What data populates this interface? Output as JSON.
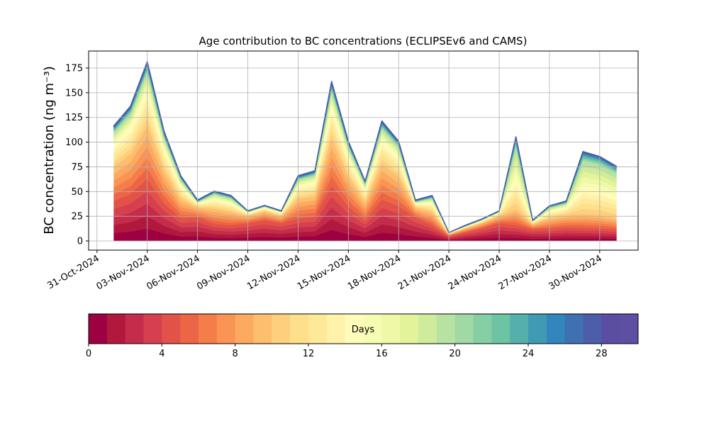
{
  "chart_data": {
    "type": "area",
    "title": "Age contribution to BC concentrations (ECLIPSEv6 and CAMS)",
    "ylabel": "BC concentration (ng m⁻³)",
    "x": [
      "2024-11-01",
      "2024-11-02",
      "2024-11-03",
      "2024-11-04",
      "2024-11-05",
      "2024-11-06",
      "2024-11-07",
      "2024-11-08",
      "2024-11-09",
      "2024-11-10",
      "2024-11-11",
      "2024-11-12",
      "2024-11-13",
      "2024-11-14",
      "2024-11-15",
      "2024-11-16",
      "2024-11-17",
      "2024-11-18",
      "2024-11-19",
      "2024-11-20",
      "2024-11-21",
      "2024-11-22",
      "2024-11-23",
      "2024-11-24",
      "2024-11-25",
      "2024-11-26",
      "2024-11-27",
      "2024-11-28",
      "2024-11-29",
      "2024-11-30",
      "2024-12-01"
    ],
    "series": [
      {
        "color": "#9e0142",
        "values": [
          8.1,
          9.5,
          12.6,
          7.7,
          4.6,
          4.8,
          3.5,
          3.2,
          3.6,
          4.2,
          3.6,
          4.6,
          4.9,
          11.2,
          7,
          4.2,
          8.4,
          7,
          4.8,
          3.2,
          1,
          1.8,
          2.6,
          3.6,
          3.2,
          2.4,
          2.5,
          2.8,
          2.7,
          2.6,
          2.3
        ]
      },
      {
        "color": "#b2183e",
        "values": [
          8.1,
          9.5,
          12.6,
          7.7,
          4.6,
          4.8,
          3.5,
          3.2,
          3.6,
          4.2,
          3.6,
          4.6,
          4.9,
          11.2,
          7,
          4.2,
          8.4,
          7,
          4.8,
          3.2,
          1,
          1.8,
          2.6,
          3.6,
          3.2,
          2.4,
          2.5,
          2.8,
          2.7,
          2.6,
          2.3
        ]
      },
      {
        "color": "#c52b4a",
        "values": [
          8.1,
          9.5,
          12.6,
          7.7,
          4.6,
          4.8,
          3.5,
          3.2,
          3.6,
          4.2,
          3.6,
          4.6,
          4.9,
          11.2,
          7,
          4.2,
          8.4,
          7,
          4.8,
          3.2,
          1,
          1.8,
          2.6,
          3.6,
          3.2,
          2.4,
          2.5,
          2.8,
          2.7,
          2.6,
          2.3
        ]
      },
      {
        "color": "#d6404e",
        "values": [
          8.1,
          9.5,
          12.6,
          7.7,
          4.6,
          4.8,
          3.5,
          3.2,
          3.6,
          4.2,
          3.6,
          4.6,
          4.9,
          11.2,
          7,
          4.2,
          8.4,
          7,
          4.8,
          3.2,
          1,
          1.8,
          2.6,
          3.6,
          3.2,
          2.4,
          2.5,
          2.8,
          2.7,
          2.6,
          2.3
        ]
      },
      {
        "color": "#e25249",
        "values": [
          8.1,
          9.5,
          12.6,
          7.7,
          4.6,
          4.8,
          3.5,
          3.2,
          3.6,
          4.2,
          3.6,
          4.6,
          4.9,
          11.2,
          7,
          4.2,
          8.4,
          7,
          4.8,
          3.2,
          1,
          1.8,
          2.6,
          3.6,
          3.2,
          2.4,
          2.5,
          2.8,
          2.7,
          2.6,
          2.3
        ]
      },
      {
        "color": "#ec6645",
        "values": [
          6.9,
          8.1,
          10.8,
          6.6,
          3.9,
          2,
          3,
          2.7,
          1.5,
          1.8,
          1.5,
          3.9,
          4.2,
          9.6,
          6,
          3.6,
          7.2,
          6,
          2,
          2.7,
          0.4,
          0.8,
          1.1,
          1.5,
          3.2,
          1,
          2.1,
          2.4,
          2.7,
          2.6,
          2.3
        ]
      },
      {
        "color": "#f57d4a",
        "values": [
          6.9,
          8.1,
          10.8,
          6.6,
          3.9,
          2,
          3,
          2.7,
          1.5,
          1.8,
          1.5,
          3.9,
          4.2,
          9.6,
          6,
          3.6,
          7.2,
          6,
          2,
          2.7,
          0.4,
          0.8,
          1.1,
          1.5,
          3.2,
          1,
          2.1,
          2.4,
          2.7,
          2.6,
          2.3
        ]
      },
      {
        "color": "#f99455",
        "values": [
          6.9,
          8.1,
          10.8,
          6.6,
          3.9,
          2,
          3,
          2.7,
          1.5,
          1.8,
          1.5,
          3.9,
          4.2,
          9.6,
          6,
          3.6,
          7.2,
          6,
          2,
          2.7,
          0.4,
          0.8,
          1.1,
          1.5,
          3.2,
          1,
          2.1,
          2.4,
          2.7,
          2.6,
          2.3
        ]
      },
      {
        "color": "#fcaa60",
        "values": [
          6.9,
          8.1,
          10.8,
          6.6,
          3.9,
          2,
          3,
          2.7,
          1.5,
          1.8,
          1.5,
          3.9,
          4.2,
          9.6,
          6,
          3.6,
          7.2,
          6,
          2,
          2.7,
          0.4,
          0.8,
          1.1,
          1.5,
          3.2,
          1,
          2.1,
          2.4,
          2.7,
          2.6,
          2.3
        ]
      },
      {
        "color": "#fdbe6e",
        "values": [
          6.9,
          8.1,
          10.8,
          6.6,
          3.9,
          2,
          3,
          2.7,
          1.5,
          1.8,
          1.5,
          3.9,
          4.2,
          9.6,
          6,
          3.6,
          7.2,
          6,
          2,
          2.7,
          0.4,
          0.8,
          1.1,
          1.5,
          3.2,
          1,
          2.1,
          2.4,
          2.7,
          2.6,
          2.3
        ]
      },
      {
        "color": "#fed07e",
        "values": [
          4.6,
          5.4,
          7.2,
          4.4,
          2.6,
          0.8,
          2,
          1.8,
          0.6,
          0.7,
          0.6,
          2.6,
          2.8,
          6.4,
          4,
          2.4,
          4.8,
          4,
          0.8,
          1.8,
          0.2,
          0.3,
          0.4,
          0.6,
          6.3,
          0.4,
          1.4,
          1.6,
          5.4,
          5.1,
          4.5
        ]
      },
      {
        "color": "#fee08b",
        "values": [
          4.6,
          5.4,
          7.2,
          4.4,
          2.6,
          0.8,
          2,
          1.8,
          0.6,
          0.7,
          0.6,
          2.6,
          2.8,
          6.4,
          4,
          2.4,
          4.8,
          4,
          0.8,
          1.8,
          0.2,
          0.3,
          0.4,
          0.6,
          6.3,
          0.4,
          1.4,
          1.6,
          5.4,
          5.1,
          4.5
        ]
      },
      {
        "color": "#fee999",
        "values": [
          4.6,
          5.4,
          7.2,
          4.4,
          2.6,
          0.8,
          2,
          1.8,
          0.6,
          0.7,
          0.6,
          2.6,
          2.8,
          6.4,
          4,
          2.4,
          4.8,
          4,
          0.8,
          1.8,
          0.2,
          0.3,
          0.4,
          0.6,
          6.3,
          0.4,
          1.4,
          1.6,
          5.4,
          5.1,
          4.5
        ]
      },
      {
        "color": "#fff3ac",
        "values": [
          4.6,
          5.4,
          7.2,
          4.4,
          2.6,
          0.8,
          2,
          1.8,
          0.6,
          0.7,
          0.6,
          2.6,
          2.8,
          6.4,
          4,
          2.4,
          4.8,
          4,
          0.8,
          1.8,
          0.2,
          0.3,
          0.4,
          0.6,
          6.3,
          0.4,
          1.4,
          1.6,
          5.4,
          5.1,
          4.5
        ]
      },
      {
        "color": "#fffcba",
        "values": [
          4.6,
          5.4,
          7.2,
          4.4,
          2.6,
          0.8,
          2,
          1.8,
          0.6,
          0.7,
          0.6,
          2.6,
          2.8,
          6.4,
          4,
          2.4,
          4.8,
          4,
          0.8,
          1.8,
          0.2,
          0.3,
          0.4,
          0.6,
          6.3,
          0.4,
          1.4,
          1.6,
          5.4,
          5.1,
          4.5
        ]
      },
      {
        "color": "#f7fcb3",
        "values": [
          2.3,
          2.7,
          3.6,
          2.2,
          1.3,
          0.3,
          1,
          0.9,
          0.2,
          0.3,
          0.2,
          1.3,
          1.4,
          3.2,
          2,
          1.2,
          2.4,
          2,
          0.3,
          0.9,
          0.1,
          0.1,
          0.2,
          0.2,
          6.3,
          0.2,
          0.7,
          0.8,
          5.4,
          5.1,
          4.5
        ]
      },
      {
        "color": "#eff8a6",
        "values": [
          2.3,
          2.7,
          3.6,
          2.2,
          1.3,
          0.3,
          1,
          0.9,
          0.2,
          0.3,
          0.2,
          1.3,
          1.4,
          3.2,
          2,
          1.2,
          2.4,
          2,
          0.3,
          0.9,
          0.1,
          0.1,
          0.2,
          0.2,
          6.3,
          0.2,
          0.7,
          0.8,
          5.4,
          5.1,
          4.5
        ]
      },
      {
        "color": "#e2f39a",
        "values": [
          2.3,
          2.7,
          3.6,
          2.2,
          1.3,
          0.3,
          1,
          0.9,
          0.2,
          0.3,
          0.2,
          1.3,
          1.4,
          3.2,
          2,
          1.2,
          2.4,
          2,
          0.3,
          0.9,
          0.1,
          0.1,
          0.2,
          0.2,
          6.3,
          0.2,
          0.7,
          0.8,
          5.4,
          5.1,
          4.5
        ]
      },
      {
        "color": "#cfeb9c",
        "values": [
          2.3,
          2.7,
          3.6,
          2.2,
          1.3,
          0.3,
          1,
          0.9,
          0.2,
          0.3,
          0.2,
          1.3,
          1.4,
          3.2,
          2,
          1.2,
          2.4,
          2,
          0.3,
          0.9,
          0.1,
          0.1,
          0.2,
          0.2,
          6.3,
          0.2,
          0.7,
          0.8,
          5.4,
          5.1,
          4.5
        ]
      },
      {
        "color": "#b8e2a1",
        "values": [
          2.3,
          2.7,
          3.6,
          2.2,
          1.3,
          0.3,
          1,
          0.9,
          0.2,
          0.3,
          0.2,
          1.3,
          1.4,
          3.2,
          2,
          1.2,
          2.4,
          2,
          0.3,
          0.9,
          0.1,
          0.1,
          0.2,
          0.2,
          6.3,
          0.2,
          0.7,
          0.8,
          5.4,
          5.1,
          4.5
        ]
      },
      {
        "color": "#a0d9a4",
        "values": [
          0.9,
          1.1,
          1.4,
          0.9,
          0.5,
          0.2,
          0.4,
          0.4,
          0.1,
          0.1,
          0.1,
          0.5,
          0.6,
          1.3,
          0.8,
          0.5,
          1,
          0.8,
          0.2,
          0.4,
          0,
          0.1,
          0.1,
          0.1,
          1.6,
          0.1,
          0.3,
          0.3,
          1.4,
          1.3,
          1.1
        ]
      },
      {
        "color": "#86cfa5",
        "values": [
          0.9,
          1.1,
          1.4,
          0.9,
          0.5,
          0.2,
          0.4,
          0.4,
          0.1,
          0.1,
          0.1,
          0.5,
          0.6,
          1.3,
          0.8,
          0.5,
          1,
          0.8,
          0.2,
          0.4,
          0,
          0.1,
          0.1,
          0.1,
          1.6,
          0.1,
          0.3,
          0.3,
          1.4,
          1.3,
          1.1
        ]
      },
      {
        "color": "#6cc4a5",
        "values": [
          0.9,
          1.1,
          1.4,
          0.9,
          0.5,
          0.2,
          0.4,
          0.4,
          0.1,
          0.1,
          0.1,
          0.5,
          0.6,
          1.3,
          0.8,
          0.5,
          1,
          0.8,
          0.2,
          0.4,
          0,
          0.1,
          0.1,
          0.1,
          1.6,
          0.1,
          0.3,
          0.3,
          1.4,
          1.3,
          1.1
        ]
      },
      {
        "color": "#55b0ac",
        "values": [
          0.9,
          1.1,
          1.4,
          0.9,
          0.5,
          0.2,
          0.4,
          0.4,
          0.1,
          0.1,
          0.1,
          0.5,
          0.6,
          1.3,
          0.8,
          0.5,
          1,
          0.8,
          0.2,
          0.4,
          0,
          0.1,
          0.1,
          0.1,
          1.6,
          0.1,
          0.3,
          0.3,
          1.4,
          1.3,
          1.1
        ]
      },
      {
        "color": "#3f9bb3",
        "values": [
          0.9,
          1.1,
          1.4,
          0.9,
          0.5,
          0.2,
          0.4,
          0.4,
          0.1,
          0.1,
          0.1,
          0.5,
          0.6,
          1.3,
          0.8,
          0.5,
          1,
          0.8,
          0.2,
          0.4,
          0,
          0.1,
          0.1,
          0.1,
          1.6,
          0.1,
          0.3,
          0.3,
          1.4,
          1.3,
          1.1
        ]
      },
      {
        "color": "#3286bc",
        "values": [
          0.5,
          0.5,
          0.7,
          0.4,
          0.3,
          0.2,
          0.2,
          0.2,
          0.1,
          0.1,
          0.1,
          0.3,
          0.3,
          0.6,
          0.4,
          0.2,
          0.5,
          0.4,
          0.2,
          0.2,
          0,
          0.1,
          0.1,
          0.1,
          0.5,
          0.1,
          0.1,
          0.2,
          0.5,
          0.4,
          0.4
        ]
      },
      {
        "color": "#3f71b1",
        "values": [
          0.5,
          0.5,
          0.7,
          0.4,
          0.3,
          0.2,
          0.2,
          0.2,
          0.1,
          0.1,
          0.1,
          0.3,
          0.3,
          0.6,
          0.4,
          0.2,
          0.5,
          0.4,
          0.2,
          0.2,
          0,
          0.1,
          0.1,
          0.1,
          0.5,
          0.1,
          0.1,
          0.2,
          0.5,
          0.4,
          0.4
        ]
      },
      {
        "color": "#4d5ea9",
        "values": [
          0.5,
          0.5,
          0.7,
          0.4,
          0.3,
          0.2,
          0.2,
          0.2,
          0.1,
          0.1,
          0.1,
          0.3,
          0.3,
          0.6,
          0.4,
          0.2,
          0.5,
          0.4,
          0.2,
          0.2,
          0,
          0.1,
          0.1,
          0.1,
          0.5,
          0.1,
          0.1,
          0.2,
          0.5,
          0.4,
          0.4
        ]
      },
      {
        "color": "#5b4ea2",
        "values": [
          0.5,
          0.5,
          0.7,
          0.4,
          0.3,
          0.2,
          0.2,
          0.2,
          0.1,
          0.1,
          0.1,
          0.3,
          0.3,
          0.6,
          0.4,
          0.2,
          0.5,
          0.4,
          0.2,
          0.2,
          0,
          0.1,
          0.1,
          0.1,
          0.5,
          0.1,
          0.1,
          0.2,
          0.5,
          0.4,
          0.4
        ]
      },
      {
        "color": "#5e4fa2",
        "values": [
          0.5,
          0.5,
          0.7,
          0.4,
          0.3,
          0.2,
          0.2,
          0.2,
          0.1,
          0.1,
          0.1,
          0.3,
          0.3,
          0.6,
          0.4,
          0.2,
          0.5,
          0.4,
          0.2,
          0.2,
          0,
          0.1,
          0.1,
          0.1,
          0.5,
          0.1,
          0.1,
          0.2,
          0.5,
          0.4,
          0.4
        ]
      }
    ],
    "xlim": [
      "2024-10-30T12:00:00Z",
      "2024-12-02T07:00:00Z"
    ],
    "xticks": [
      {
        "value": "2024-10-31",
        "label": "31-Oct-2024"
      },
      {
        "value": "2024-11-03",
        "label": "03-Nov-2024"
      },
      {
        "value": "2024-11-06",
        "label": "06-Nov-2024"
      },
      {
        "value": "2024-11-09",
        "label": "09-Nov-2024"
      },
      {
        "value": "2024-11-12",
        "label": "12-Nov-2024"
      },
      {
        "value": "2024-11-15",
        "label": "15-Nov-2024"
      },
      {
        "value": "2024-11-18",
        "label": "18-Nov-2024"
      },
      {
        "value": "2024-11-21",
        "label": "21-Nov-2024"
      },
      {
        "value": "2024-11-24",
        "label": "24-Nov-2024"
      },
      {
        "value": "2024-11-27",
        "label": "27-Nov-2024"
      },
      {
        "value": "2024-11-30",
        "label": "30-Nov-2024"
      }
    ],
    "ylim": [
      -9.3,
      192.2
    ],
    "yticks": [
      0,
      25,
      50,
      75,
      100,
      125,
      150,
      175
    ],
    "grid": true,
    "colorbar": {
      "label": "Days",
      "lim": [
        0,
        30
      ],
      "ticks": [
        0,
        4,
        8,
        12,
        16,
        20,
        24,
        28
      ]
    }
  }
}
